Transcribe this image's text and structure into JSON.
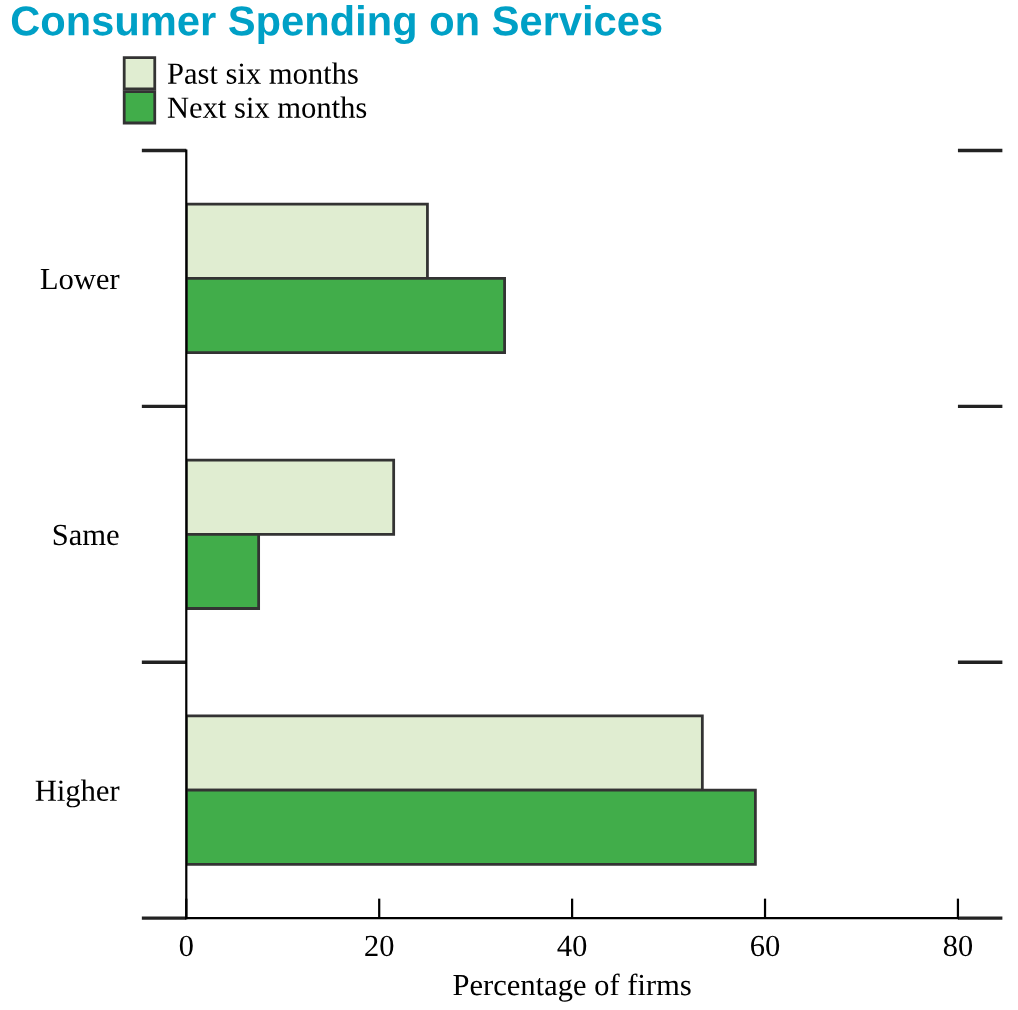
{
  "chart_data": {
    "type": "bar",
    "orientation": "horizontal",
    "title": "Consumer Spending on Services",
    "xlabel": "Percentage of firms",
    "categories": [
      "Lower",
      "Same",
      "Higher"
    ],
    "series": [
      {
        "name": "Past six months",
        "color": "#e0edd1",
        "values": [
          25,
          21.5,
          53.5
        ]
      },
      {
        "name": "Next six months",
        "color": "#41ad4a",
        "values": [
          33,
          7.5,
          59
        ]
      }
    ],
    "xlim": [
      0,
      80
    ],
    "xticks": [
      0,
      20,
      40,
      60,
      80
    ],
    "grid": false,
    "legend": "top left"
  }
}
